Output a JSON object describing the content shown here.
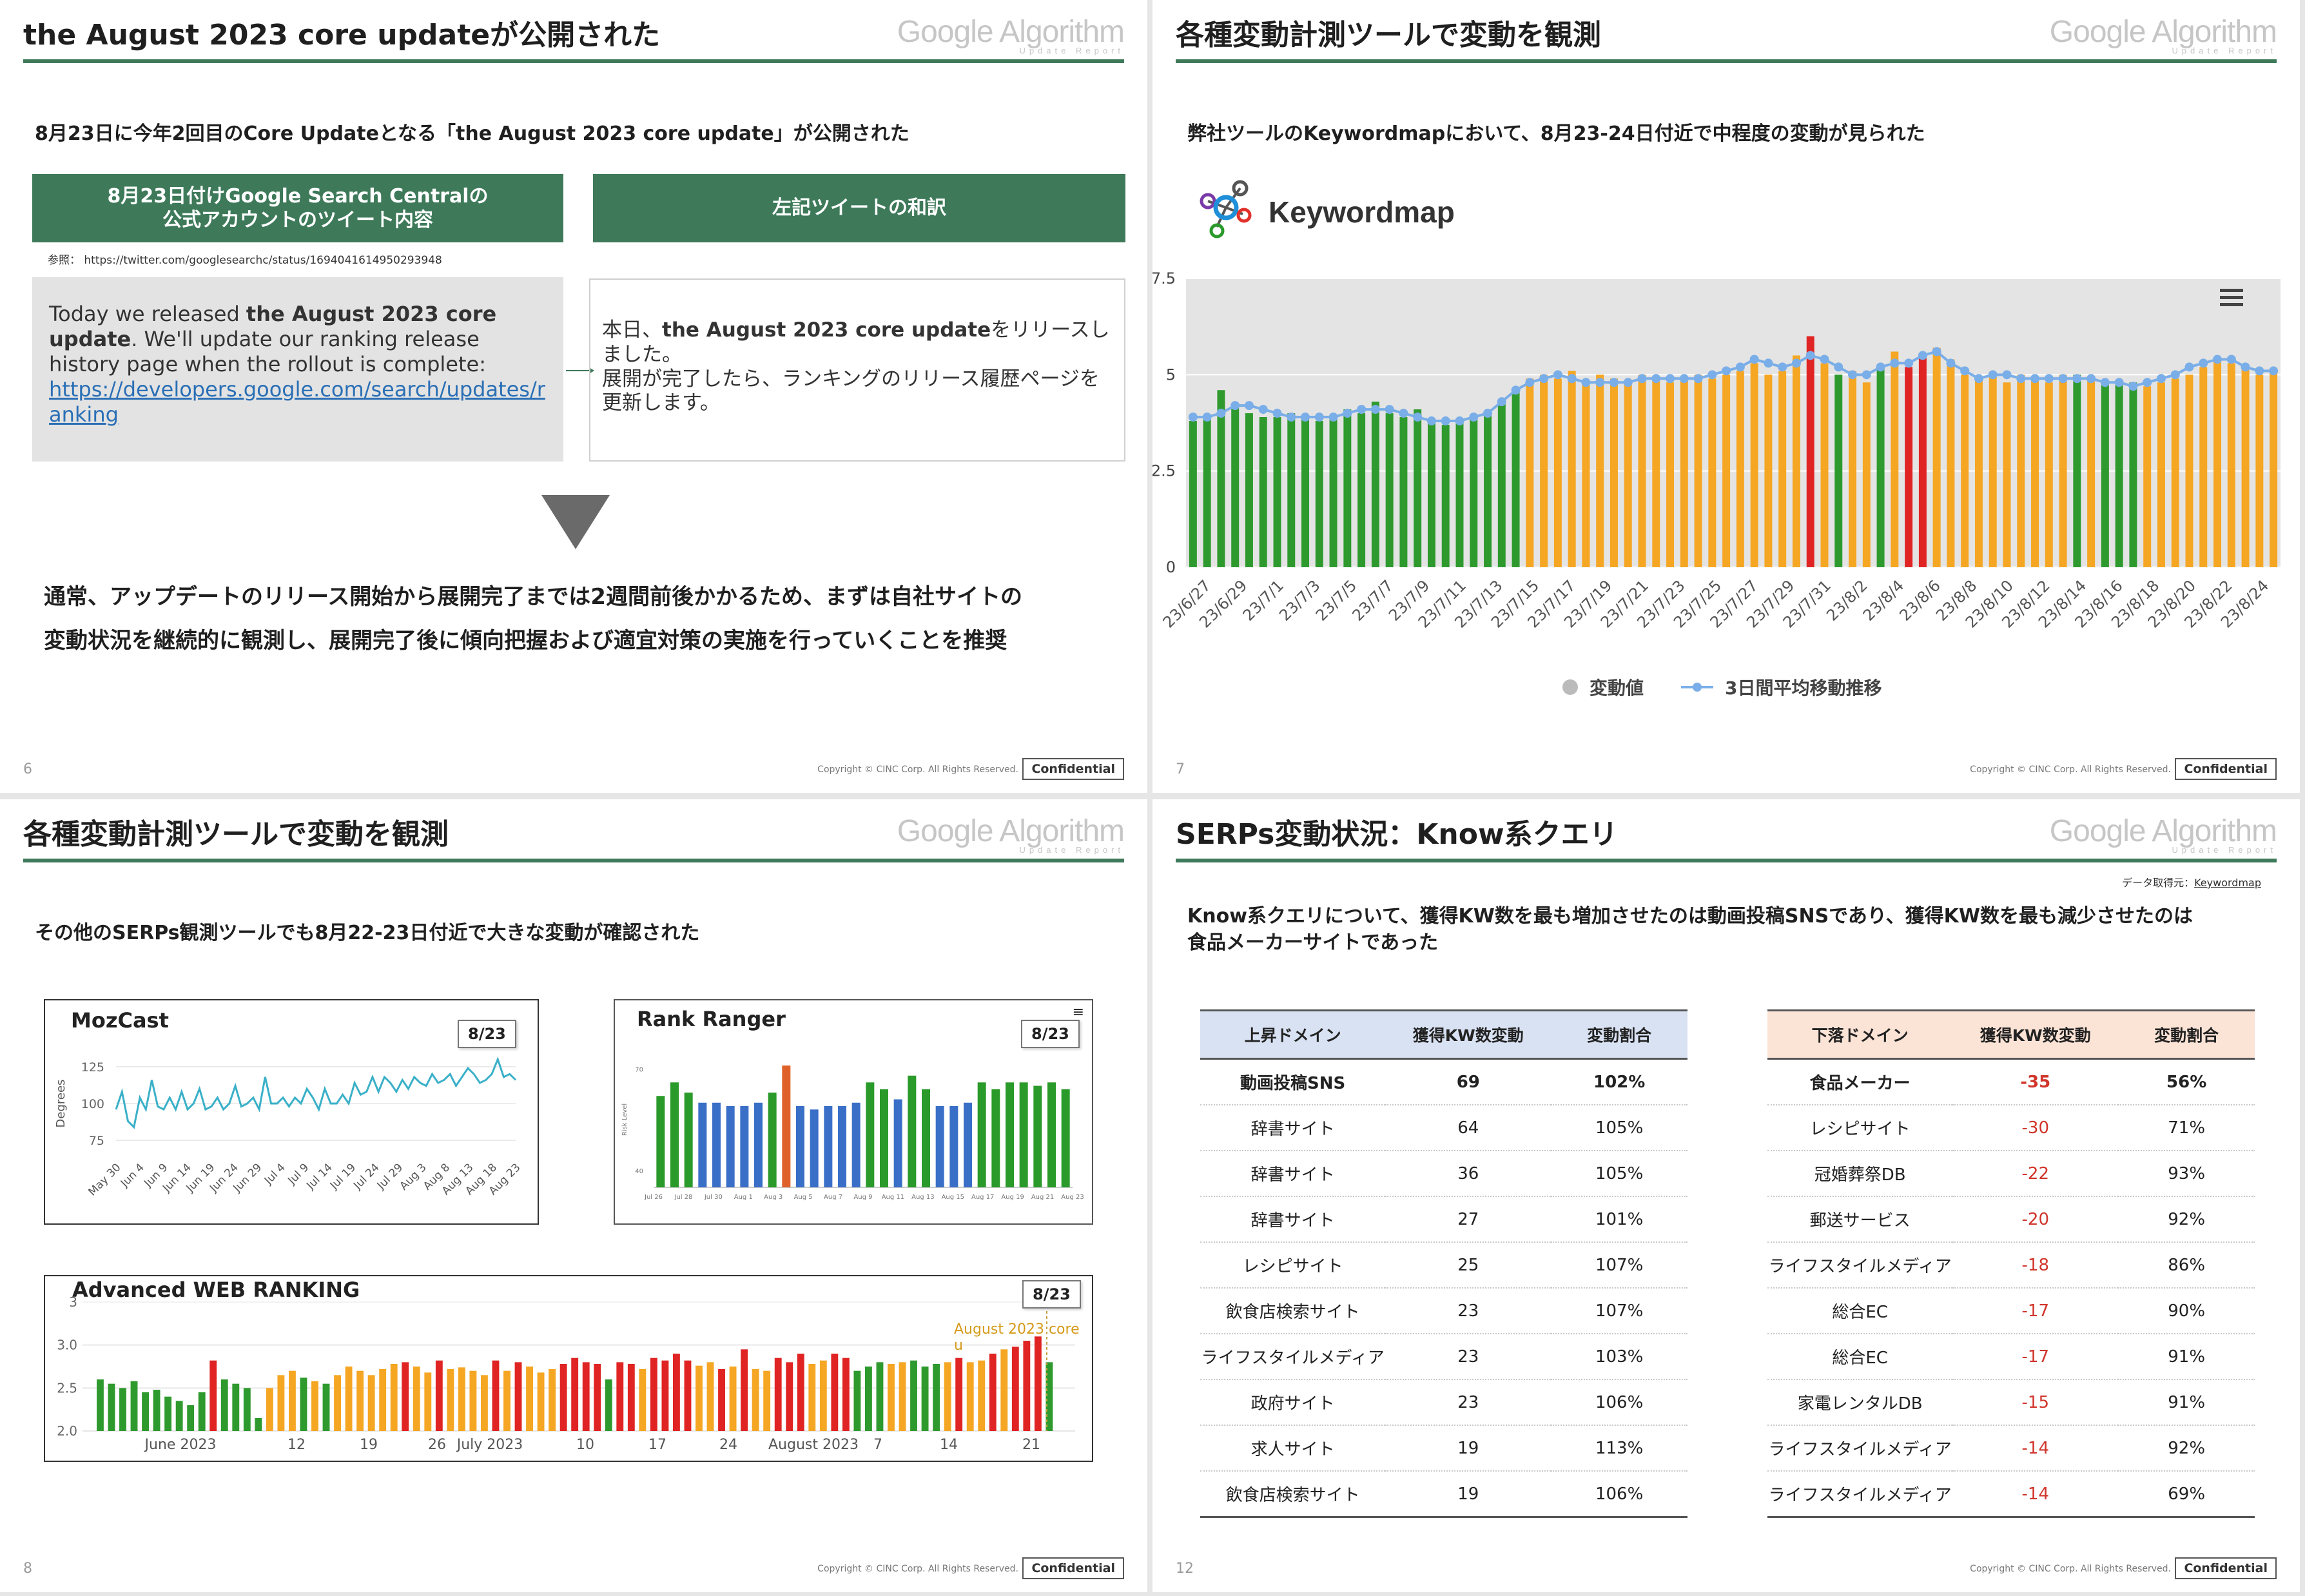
{
  "common": {
    "brand_title": "Google Algorithm",
    "brand_sub": "Update Report",
    "copyright": "Copyright © CINC Corp. All Rights Reserved.",
    "confidential": "Confidential"
  },
  "slide6": {
    "page_no": "6",
    "title": "the August 2023 core updateが公開された",
    "lead": "8月23日に今年2回目のCore Updateとなる「the August 2023 core update」が公開された",
    "left_header": "8月23日付けGoogle Search Centralの\n公式アカウントのツイート内容",
    "right_header": "左記ツイートの和訳",
    "ref": "参照： https://twitter.com/googlesearchc/status/1694041614950293948",
    "tweet_pre": "Today we released ",
    "tweet_bold": "the August 2023 core update",
    "tweet_post": ". We'll update our ranking release history page when the rollout is complete:",
    "tweet_link": "https://developers.google.com/search/updates/ranking",
    "jp_pre": "本日、",
    "jp_bold": "the August 2023 core update",
    "jp_post": "をリリースしました。\n展開が完了したら、ランキングのリリース履歴ページを更新します。",
    "conclusion": "通常、アップデートのリリース開始から展開完了までは2週間前後かかるため、まずは自社サイトの\n変動状況を継続的に観測し、展開完了後に傾向把握および適宜対策の実施を行っていくことを推奨"
  },
  "slide7": {
    "page_no": "7",
    "title": "各種変動計測ツールで変動を観測",
    "lead": "弊社ツールのKeywordmapにおいて、8月23-24日付近で中程度の変動が見られた",
    "logo_text": "Keywordmap",
    "chart_data": {
      "type": "bar",
      "ylim": [
        0,
        7.5
      ],
      "yticks": [
        "7.5",
        "5",
        "2.5",
        "0"
      ],
      "xlabels": [
        "23/6/27",
        "23/6/29",
        "23/7/1",
        "23/7/3",
        "23/7/5",
        "23/7/7",
        "23/7/9",
        "23/7/11",
        "23/7/13",
        "23/7/15",
        "23/7/17",
        "23/7/19",
        "23/7/21",
        "23/7/23",
        "23/7/25",
        "23/7/27",
        "23/7/29",
        "23/7/31",
        "23/8/2",
        "23/8/4",
        "23/8/6",
        "23/8/8",
        "23/8/10",
        "23/8/12",
        "23/8/14",
        "23/8/16",
        "23/8/18",
        "23/8/20",
        "23/8/22",
        "23/8/24"
      ],
      "bar_values": [
        3.8,
        3.9,
        4.6,
        4.2,
        4.0,
        3.9,
        3.9,
        4.0,
        3.9,
        3.8,
        3.9,
        4.1,
        4.0,
        4.3,
        4.0,
        3.9,
        4.1,
        3.8,
        3.7,
        3.8,
        3.9,
        4.0,
        4.3,
        4.6,
        4.9,
        5.0,
        4.9,
        5.1,
        4.8,
        5.0,
        4.9,
        4.8,
        5.0,
        4.9,
        4.8,
        4.9,
        5.0,
        4.9,
        5.0,
        5.1,
        5.3,
        5.0,
        5.1,
        5.5,
        6.0,
        5.3,
        5.0,
        5.1,
        4.8,
        5.2,
        5.6,
        5.2,
        5.5,
        5.7,
        5.4,
        5.0,
        4.9,
        5.0,
        4.8,
        5.0,
        4.9,
        4.8,
        5.0,
        5.0,
        4.9,
        4.8,
        4.8,
        4.8,
        4.7,
        4.8,
        4.9,
        5.0,
        5.2,
        5.4,
        5.3,
        5.2,
        5.0,
        5.1
      ],
      "bar_colors": [
        "g",
        "g",
        "g",
        "g",
        "g",
        "g",
        "g",
        "g",
        "g",
        "g",
        "g",
        "g",
        "g",
        "g",
        "g",
        "g",
        "g",
        "g",
        "g",
        "g",
        "g",
        "g",
        "g",
        "g",
        "o",
        "o",
        "o",
        "o",
        "o",
        "o",
        "o",
        "o",
        "o",
        "o",
        "o",
        "o",
        "o",
        "o",
        "o",
        "o",
        "o",
        "o",
        "o",
        "o",
        "r",
        "o",
        "g",
        "o",
        "o",
        "g",
        "o",
        "r",
        "r",
        "o",
        "o",
        "o",
        "o",
        "o",
        "o",
        "o",
        "o",
        "o",
        "o",
        "g",
        "o",
        "g",
        "g",
        "g",
        "o",
        "o",
        "o",
        "o",
        "o",
        "o",
        "o",
        "o",
        "o",
        "o"
      ],
      "avg_values": [
        3.9,
        3.9,
        4.0,
        4.2,
        4.2,
        4.1,
        4.0,
        3.9,
        3.9,
        3.9,
        3.9,
        4.0,
        4.1,
        4.1,
        4.1,
        4.0,
        3.9,
        3.8,
        3.8,
        3.8,
        3.9,
        4.0,
        4.3,
        4.6,
        4.8,
        4.9,
        5.0,
        4.9,
        4.8,
        4.8,
        4.8,
        4.8,
        4.9,
        4.9,
        4.9,
        4.9,
        4.9,
        5.0,
        5.1,
        5.2,
        5.4,
        5.3,
        5.2,
        5.3,
        5.5,
        5.4,
        5.2,
        5.0,
        5.0,
        5.2,
        5.3,
        5.3,
        5.5,
        5.6,
        5.3,
        5.1,
        4.9,
        5.0,
        5.0,
        4.9,
        4.9,
        4.9,
        4.9,
        4.9,
        4.9,
        4.8,
        4.8,
        4.7,
        4.8,
        4.9,
        5.0,
        5.2,
        5.3,
        5.4,
        5.4,
        5.2,
        5.1,
        5.1
      ],
      "legend": [
        "変動値",
        "3日間平均移動推移"
      ],
      "colors": {
        "g": "#2e9a2e",
        "o": "#f5a623",
        "r": "#e02424",
        "avg": "#7aaee8"
      }
    }
  },
  "slide8": {
    "page_no": "8",
    "title": "各種変動計測ツールで変動を観測",
    "lead": "その他のSERPs観測ツールでも8月22-23日付近で大きな変動が確認された",
    "mozcast": {
      "title": "MozCast",
      "callout": "8/23",
      "ylabel": "Degrees",
      "yticks": [
        "125",
        "100",
        "75"
      ],
      "ylim": [
        65,
        135
      ],
      "xlabels": [
        "May 30",
        "Jun 4",
        "Jun 9",
        "Jun 14",
        "Jun 19",
        "Jun 24",
        "Jun 29",
        "Jul 4",
        "Jul 9",
        "Jul 14",
        "Jul 19",
        "Jul 24",
        "Jul 29",
        "Aug 3",
        "Aug 8",
        "Aug 13",
        "Aug 18",
        "Aug 23"
      ],
      "values": [
        96,
        108,
        88,
        84,
        104,
        96,
        116,
        98,
        96,
        104,
        96,
        108,
        96,
        100,
        110,
        96,
        98,
        104,
        96,
        100,
        112,
        98,
        100,
        104,
        96,
        118,
        100,
        100,
        104,
        98,
        104,
        100,
        110,
        104,
        96,
        110,
        100,
        100,
        106,
        100,
        114,
        106,
        108,
        118,
        108,
        118,
        114,
        108,
        116,
        110,
        118,
        114,
        112,
        120,
        114,
        116,
        120,
        112,
        118,
        124,
        120,
        114,
        116,
        120,
        130,
        118,
        120,
        116
      ],
      "line_color": "#3ab0c8"
    },
    "rankranger": {
      "title": "Rank Ranger",
      "callout": "8/23",
      "yticks": [
        "70",
        "40"
      ],
      "ylabel": "Risk Level",
      "xlabels": [
        "Jul 26",
        "Jul 28",
        "Jul 30",
        "Aug 1",
        "Aug 3",
        "Aug 5",
        "Aug 7",
        "Aug 9",
        "Aug 11",
        "Aug 13",
        "Aug 15",
        "Aug 17",
        "Aug 19",
        "Aug 21",
        "Aug 23"
      ],
      "values": [
        62,
        66,
        63,
        60,
        60,
        59,
        59,
        60,
        63,
        71,
        59,
        58,
        59,
        59,
        60,
        66,
        64,
        61,
        68,
        64,
        59,
        59,
        60,
        66,
        64,
        66,
        66,
        65,
        66,
        64
      ],
      "bar_colors": [
        "g",
        "g",
        "g",
        "b",
        "b",
        "b",
        "b",
        "b",
        "g",
        "r",
        "b",
        "b",
        "b",
        "b",
        "b",
        "g",
        "g",
        "b",
        "g",
        "g",
        "b",
        "b",
        "b",
        "g",
        "g",
        "g",
        "g",
        "g",
        "g",
        "g"
      ],
      "colors": {
        "g": "#2a9a2a",
        "b": "#3a6fc8",
        "r": "#e0602a"
      }
    },
    "awr": {
      "title": "Advanced WEB RANKING",
      "callout": "8/23",
      "annotation": "August 2023 core u",
      "yticks": [
        "3",
        "3.0",
        "2.5",
        "2.0"
      ],
      "ylim": [
        2.0,
        3.5
      ],
      "xlabels": [
        "June 2023",
        "12",
        "19",
        "26",
        "July 2023",
        "10",
        "17",
        "24",
        "August 2023",
        "7",
        "14",
        "21"
      ],
      "values": [
        2.6,
        2.55,
        2.5,
        2.58,
        2.45,
        2.48,
        2.4,
        2.35,
        2.3,
        2.45,
        2.82,
        2.6,
        2.55,
        2.5,
        2.15,
        2.5,
        2.65,
        2.7,
        2.62,
        2.58,
        2.55,
        2.65,
        2.75,
        2.7,
        2.65,
        2.72,
        2.78,
        2.8,
        2.75,
        2.68,
        2.82,
        2.72,
        2.74,
        2.7,
        2.65,
        2.82,
        2.7,
        2.8,
        2.75,
        2.68,
        2.72,
        2.78,
        2.85,
        2.8,
        2.78,
        2.6,
        2.8,
        2.78,
        2.72,
        2.85,
        2.82,
        2.9,
        2.82,
        2.76,
        2.8,
        2.72,
        2.75,
        2.95,
        2.72,
        2.7,
        2.85,
        2.8,
        2.9,
        2.78,
        2.82,
        2.9,
        2.85,
        2.7,
        2.75,
        2.8,
        2.78,
        2.8,
        2.82,
        2.75,
        2.78,
        2.8,
        2.85,
        2.8,
        2.82,
        2.9,
        2.95,
        2.98,
        3.05,
        3.1,
        2.8
      ],
      "bar_colors": [
        "g",
        "g",
        "g",
        "g",
        "g",
        "g",
        "g",
        "g",
        "g",
        "g",
        "r",
        "g",
        "g",
        "g",
        "g",
        "o",
        "o",
        "o",
        "g",
        "o",
        "g",
        "o",
        "o",
        "o",
        "o",
        "o",
        "o",
        "r",
        "o",
        "o",
        "r",
        "o",
        "o",
        "o",
        "o",
        "r",
        "o",
        "r",
        "o",
        "o",
        "o",
        "r",
        "r",
        "r",
        "r",
        "g",
        "r",
        "r",
        "o",
        "r",
        "r",
        "r",
        "r",
        "o",
        "o",
        "r",
        "o",
        "r",
        "o",
        "o",
        "r",
        "r",
        "r",
        "o",
        "o",
        "r",
        "r",
        "g",
        "g",
        "g",
        "o",
        "o",
        "g",
        "g",
        "g",
        "o",
        "r",
        "o",
        "o",
        "r",
        "o",
        "r",
        "r",
        "r",
        "g"
      ],
      "colors": {
        "g": "#2e9a2e",
        "o": "#f5a623",
        "r": "#e02424"
      }
    }
  },
  "slide12": {
    "page_no": "12",
    "title": "SERPs変動状況：Know系クエリ",
    "source_label": "データ取得元：",
    "source_link": "Keywordmap",
    "lead": "Know系クエリについて、獲得KW数を最も増加させたのは動画投稿SNSであり、獲得KW数を最も減少させたのは\n食品メーカーサイトであった",
    "up_table": {
      "headers": [
        "上昇ドメイン",
        "獲得KW数変動",
        "変動割合"
      ],
      "rows": [
        [
          "動画投稿SNS",
          "69",
          "102%"
        ],
        [
          "辞書サイト",
          "64",
          "105%"
        ],
        [
          "辞書サイト",
          "36",
          "105%"
        ],
        [
          "辞書サイト",
          "27",
          "101%"
        ],
        [
          "レシピサイト",
          "25",
          "107%"
        ],
        [
          "飲食店検索サイト",
          "23",
          "107%"
        ],
        [
          "ライフスタイルメディア",
          "23",
          "103%"
        ],
        [
          "政府サイト",
          "23",
          "106%"
        ],
        [
          "求人サイト",
          "19",
          "113%"
        ],
        [
          "飲食店検索サイト",
          "19",
          "106%"
        ]
      ]
    },
    "down_table": {
      "headers": [
        "下落ドメイン",
        "獲得KW数変動",
        "変動割合"
      ],
      "rows": [
        [
          "食品メーカー",
          "-35",
          "56%"
        ],
        [
          "レシピサイト",
          "-30",
          "71%"
        ],
        [
          "冠婚葬祭DB",
          "-22",
          "93%"
        ],
        [
          "郵送サービス",
          "-20",
          "92%"
        ],
        [
          "ライフスタイルメディア",
          "-18",
          "86%"
        ],
        [
          "総合EC",
          "-17",
          "90%"
        ],
        [
          "総合EC",
          "-17",
          "91%"
        ],
        [
          "家電レンタルDB",
          "-15",
          "91%"
        ],
        [
          "ライフスタイルメディア",
          "-14",
          "92%"
        ],
        [
          "ライフスタイルメディア",
          "-14",
          "69%"
        ]
      ]
    }
  }
}
